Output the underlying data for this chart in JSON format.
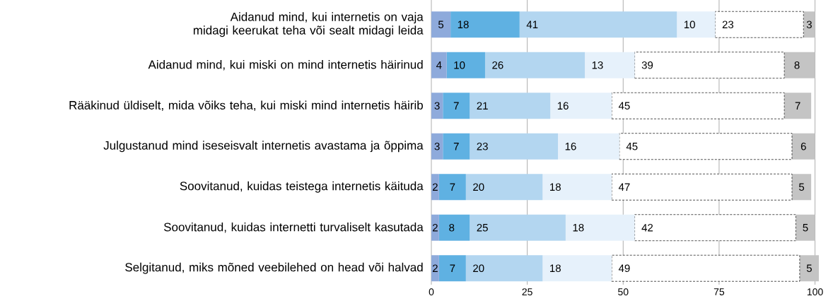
{
  "chart_data": {
    "type": "bar",
    "orientation": "horizontal",
    "stacked": true,
    "data_labels": true,
    "grid": "x",
    "categories": [
      "Aidanud mind, kui internetis on vaja midagi keerukat teha või sealt midagi leida",
      "Aidanud mind, kui miski on mind internetis häirinud",
      "Rääkinud üldiselt, mida võiks teha, kui miski mind internetis häirib",
      "Julgustanud mind iseseisvalt internetis avastama ja õppima",
      "Soovitanud, kuidas teistega internetis käituda",
      "Soovitanud, kuidas internetti turvaliselt kasutada",
      "Selgitanud, miks mõned veebilehed on head või halvad"
    ],
    "xlim": [
      0,
      101
    ],
    "xticks": [
      0,
      25,
      50,
      75,
      100
    ],
    "series": [
      {
        "color": "#8eaadb",
        "values": [
          5,
          4,
          3,
          3,
          2,
          2,
          2
        ]
      },
      {
        "color": "#5fb1e2",
        "values": [
          18,
          10,
          7,
          7,
          7,
          8,
          7
        ]
      },
      {
        "color": "#b3d6f0",
        "values": [
          41,
          26,
          21,
          23,
          20,
          25,
          20
        ]
      },
      {
        "color": "#e6f1fb",
        "values": [
          10,
          13,
          16,
          16,
          18,
          18,
          18
        ]
      },
      {
        "color": "#ffffff",
        "line_style": "dashed",
        "values": [
          23,
          39,
          45,
          45,
          47,
          42,
          49
        ]
      },
      {
        "color": "#c4c4c4",
        "values": [
          3,
          8,
          7,
          6,
          5,
          5,
          5
        ]
      }
    ]
  }
}
